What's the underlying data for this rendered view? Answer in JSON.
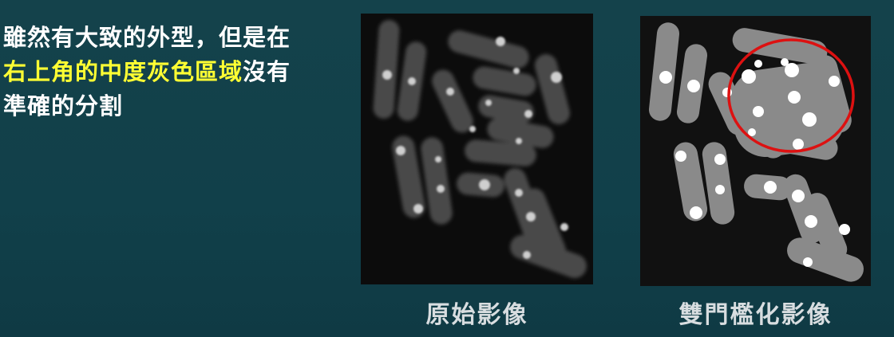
{
  "description": {
    "line1": "雖然有大致的外型，但是在",
    "line2_highlight": "右上角的中度灰色區域",
    "line2_rest": "沒有",
    "line3": "準確的分割"
  },
  "images": {
    "original_caption": "原始影像",
    "binary_caption": "雙門檻化影像"
  },
  "colors": {
    "text": "#ffffff",
    "highlight": "#ffff33",
    "circle": "#dd1111"
  }
}
